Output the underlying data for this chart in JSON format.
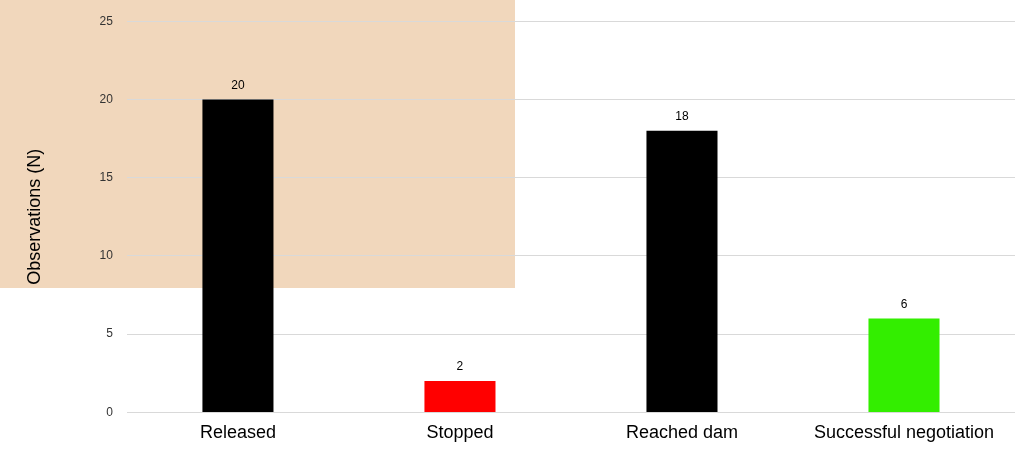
{
  "chart_data": {
    "type": "bar",
    "ylabel": "Observations (N)",
    "categories": [
      "Released",
      "Stopped",
      "Reached dam",
      "Successful negotiation"
    ],
    "values": [
      20,
      2,
      18,
      6
    ],
    "colors": [
      "#000000",
      "#ff0000",
      "#000000",
      "#33ee00"
    ],
    "ylim": [
      0,
      25
    ],
    "yticks": [
      0,
      5,
      10,
      15,
      20,
      25
    ],
    "grid": "y",
    "data_labels": true,
    "legend": false
  }
}
